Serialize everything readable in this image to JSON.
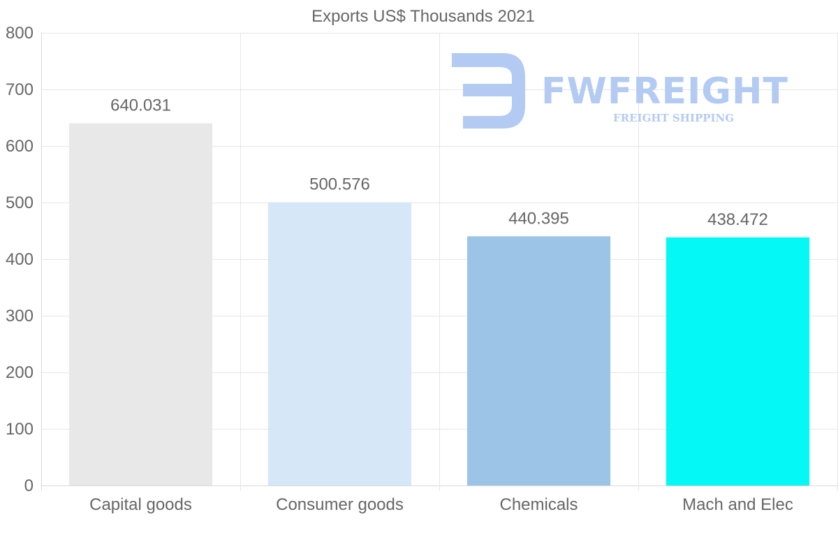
{
  "chart_data": {
    "type": "bar",
    "title": "Exports US$ Thousands 2021",
    "categories": [
      "Capital goods",
      "Consumer goods",
      "Chemicals",
      "Mach and Elec"
    ],
    "values": [
      640.031,
      500.576,
      440.395,
      438.472
    ],
    "value_labels": [
      "640.031",
      "500.576",
      "440.395",
      "438.472"
    ],
    "bar_colors": [
      "#e8e8e8",
      "#d6e7f7",
      "#9cc4e6",
      "#03f8f6"
    ],
    "ylim": [
      0,
      800
    ],
    "yticks": [
      0,
      100,
      200,
      300,
      400,
      500,
      600,
      700,
      800
    ],
    "xlabel": "",
    "ylabel": "",
    "grid": true,
    "legend": "none"
  },
  "watermark": {
    "brand": "FWFREIGHT",
    "tagline": "FREIGHT SHIPPING",
    "color": "#b3cbf2"
  }
}
